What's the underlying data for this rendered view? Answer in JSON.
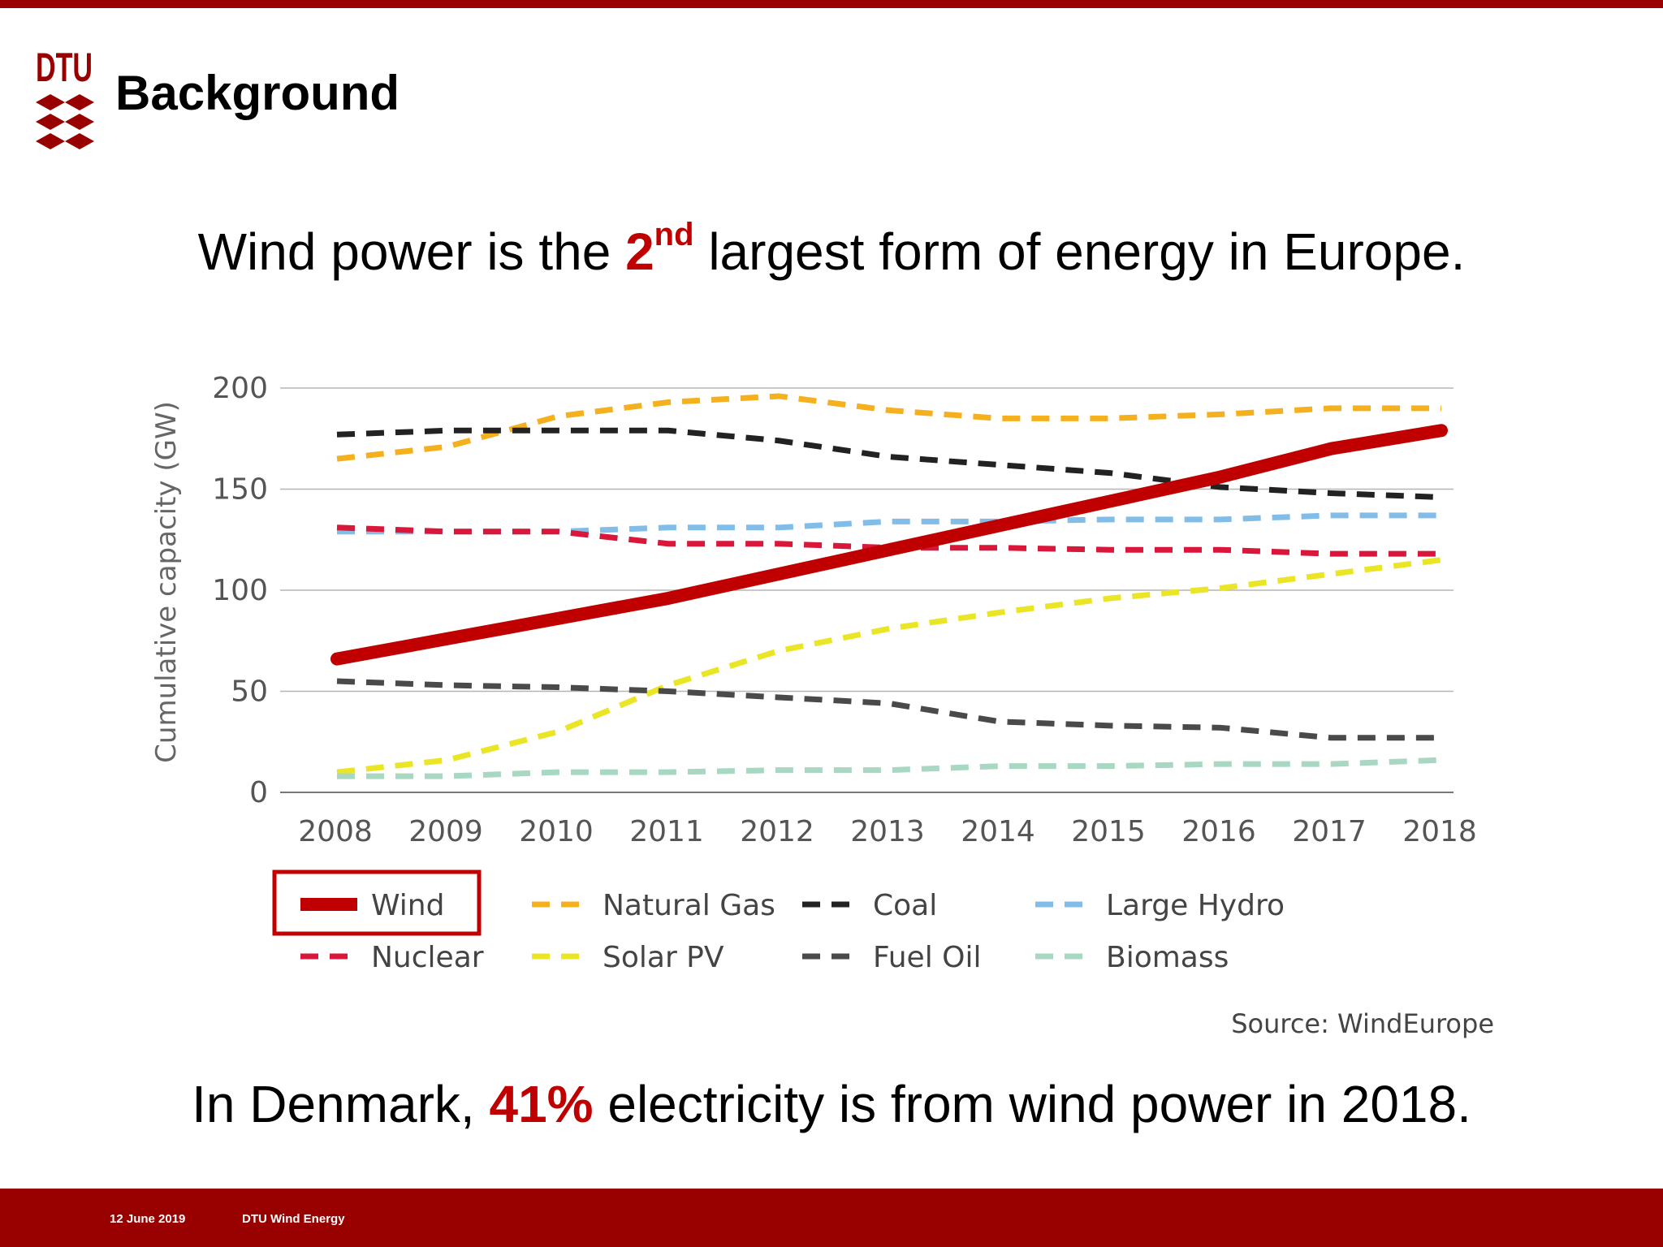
{
  "slide": {
    "logo_text": "DTU",
    "title": "Background",
    "headline_top": {
      "before": "Wind power is the ",
      "highlight": "2",
      "superscript": "nd",
      "after": " largest form of energy in Europe."
    },
    "headline_bottom": {
      "before": "In Denmark, ",
      "highlight": "41%",
      "after": " electricity is from wind power in 2018."
    },
    "footer": {
      "date": "12 June 2019",
      "department": "DTU Wind Energy"
    },
    "colors": {
      "brand": "#990000",
      "highlight": "#c00000"
    }
  },
  "chart_data": {
    "type": "line",
    "title": "",
    "xlabel": "",
    "ylabel": "Cumulative capacity (GW)",
    "ylim": [
      0,
      200
    ],
    "yticks": [
      0,
      50,
      100,
      150,
      200
    ],
    "grid": "horizontal",
    "legend_position": "bottom",
    "source": "Source: WindEurope",
    "x": [
      2008,
      2009,
      2010,
      2011,
      2012,
      2013,
      2014,
      2015,
      2016,
      2017,
      2018
    ],
    "series": [
      {
        "name": "Wind",
        "color": "#c00000",
        "style": "solid",
        "highlighted": true,
        "values": [
          66,
          76,
          86,
          96,
          108,
          120,
          132,
          144,
          156,
          170,
          179
        ]
      },
      {
        "name": "Natural Gas",
        "color": "#f5b01e",
        "style": "dashed",
        "values": [
          165,
          171,
          186,
          193,
          196,
          189,
          185,
          185,
          187,
          190,
          190
        ]
      },
      {
        "name": "Coal",
        "color": "#222222",
        "style": "dashed",
        "values": [
          177,
          179,
          179,
          179,
          174,
          166,
          162,
          158,
          151,
          148,
          146
        ]
      },
      {
        "name": "Large Hydro",
        "color": "#82bde8",
        "style": "dashed",
        "values": [
          129,
          129,
          129,
          131,
          131,
          134,
          134,
          135,
          135,
          137,
          137
        ]
      },
      {
        "name": "Nuclear",
        "color": "#d8173a",
        "style": "dashed",
        "values": [
          131,
          129,
          129,
          123,
          123,
          121,
          121,
          120,
          120,
          118,
          118
        ]
      },
      {
        "name": "Solar PV",
        "color": "#eae525",
        "style": "dashed",
        "values": [
          10,
          16,
          30,
          53,
          70,
          81,
          89,
          96,
          101,
          108,
          115
        ]
      },
      {
        "name": "Fuel Oil",
        "color": "#4a4a4a",
        "style": "dashed",
        "values": [
          55,
          53,
          52,
          50,
          47,
          44,
          35,
          33,
          32,
          27,
          27
        ]
      },
      {
        "name": "Biomass",
        "color": "#a8d7c2",
        "style": "dashed",
        "values": [
          8,
          8,
          10,
          10,
          11,
          11,
          13,
          13,
          14,
          14,
          16
        ]
      }
    ]
  }
}
